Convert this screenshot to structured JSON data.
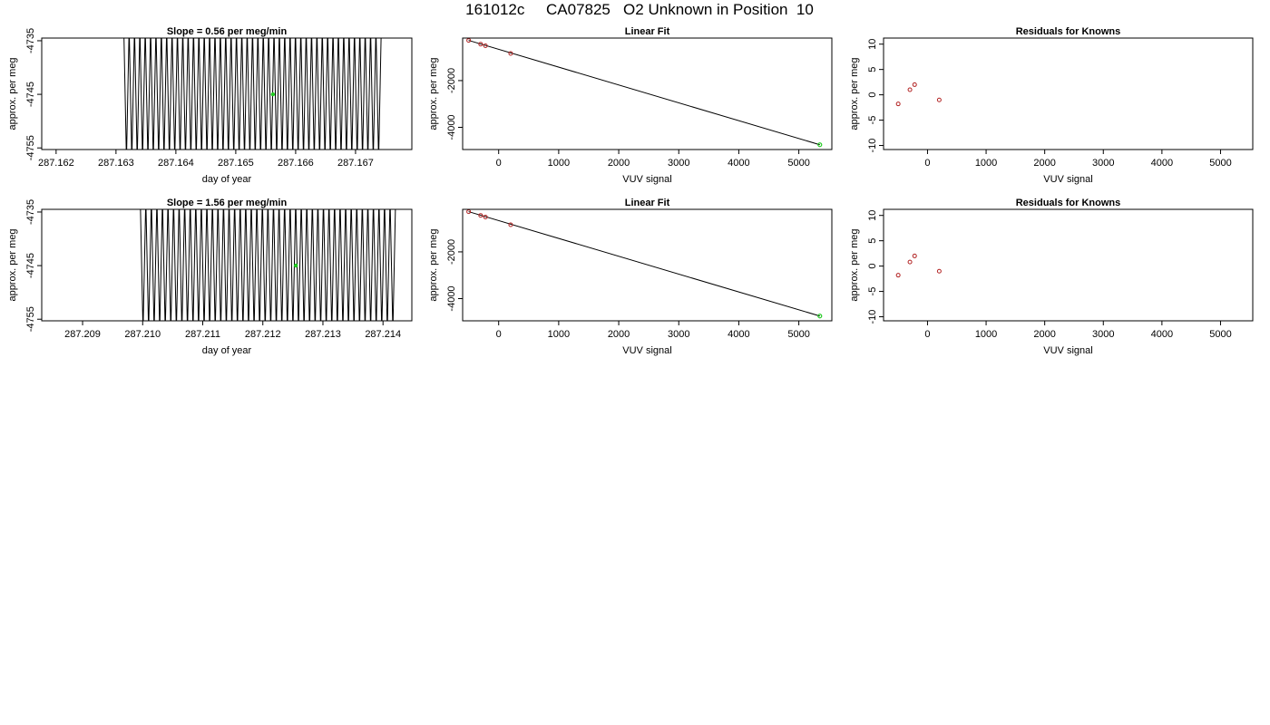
{
  "page_title": "161012c     CA07825   O2 Unknown in Position  10",
  "colors": {
    "line": "#000000",
    "known_point": "#b22222",
    "unknown_point": "#22cc22"
  },
  "chart_data": [
    {
      "type": "line",
      "title": "Slope =  0.56  per meg/min",
      "xlabel": "day of year",
      "ylabel": "approx. per meg",
      "xlim": [
        287.16176,
        287.16794
      ],
      "ylim": [
        -4755.3,
        -4734.5
      ],
      "xticks": [
        "287.162",
        "287.163",
        "287.164",
        "287.165",
        "287.166",
        "287.167"
      ],
      "yticks": [
        "-4735",
        "-4745",
        "-4755"
      ],
      "trace": {
        "x_start": 287.16313,
        "x_end": 287.16743,
        "y_low": -4755.3,
        "y_high": -4734.5,
        "oscillations": 48
      },
      "highlight_point": {
        "x": 287.16562,
        "y": -4745.0
      }
    },
    {
      "type": "scatter",
      "title": "Linear Fit",
      "xlabel": "VUV signal",
      "ylabel": "approx. per meg",
      "xlim": [
        -600,
        5550
      ],
      "ylim": [
        -4950,
        -180
      ],
      "xticks": [
        "0",
        "1000",
        "2000",
        "3000",
        "4000",
        "5000"
      ],
      "yticks": [
        "-2000",
        "-4000"
      ],
      "known_points": [
        {
          "x": -500,
          "y": -280
        },
        {
          "x": -300,
          "y": -440
        },
        {
          "x": -220,
          "y": -510
        },
        {
          "x": 200,
          "y": -840
        }
      ],
      "unknown_point": {
        "x": 5350,
        "y": -4745
      },
      "fit_line": [
        {
          "x": -500,
          "y": -280
        },
        {
          "x": 5350,
          "y": -4745
        }
      ]
    },
    {
      "type": "scatter",
      "title": "Residuals for Knowns",
      "xlabel": "VUV signal",
      "ylabel": "approx. per meg",
      "xlim": [
        -750,
        5550
      ],
      "ylim": [
        -10.8,
        11.2
      ],
      "xticks": [
        "0",
        "1000",
        "2000",
        "3000",
        "4000",
        "5000"
      ],
      "yticks": [
        "10",
        "5",
        "0",
        "-5",
        "-10"
      ],
      "points": [
        {
          "x": -500,
          "y": -1.8
        },
        {
          "x": -300,
          "y": 1.0
        },
        {
          "x": -220,
          "y": 2.0
        },
        {
          "x": 200,
          "y": -1.0
        }
      ]
    },
    {
      "type": "line",
      "title": "Slope =  1.56  per meg/min",
      "xlabel": "day of year",
      "ylabel": "approx. per meg",
      "xlim": [
        287.20832,
        287.21448
      ],
      "ylim": [
        -4755.3,
        -4734.5
      ],
      "xticks": [
        "287.209",
        "287.210",
        "287.211",
        "287.212",
        "287.213",
        "287.214"
      ],
      "yticks": [
        "-4735",
        "-4745",
        "-4755"
      ],
      "trace": {
        "x_start": 287.20996,
        "x_end": 287.21421,
        "y_low": -4755.3,
        "y_high": -4734.5,
        "oscillations": 46
      },
      "highlight_point": {
        "x": 287.21255,
        "y": -4745.0
      }
    },
    {
      "type": "scatter",
      "title": "Linear Fit",
      "xlabel": "VUV signal",
      "ylabel": "approx. per meg",
      "xlim": [
        -600,
        5550
      ],
      "ylim": [
        -4950,
        -180
      ],
      "xticks": [
        "0",
        "1000",
        "2000",
        "3000",
        "4000",
        "5000"
      ],
      "yticks": [
        "-2000",
        "-4000"
      ],
      "known_points": [
        {
          "x": -500,
          "y": -280
        },
        {
          "x": -300,
          "y": -440
        },
        {
          "x": -220,
          "y": -510
        },
        {
          "x": 200,
          "y": -840
        }
      ],
      "unknown_point": {
        "x": 5350,
        "y": -4745
      },
      "fit_line": [
        {
          "x": -500,
          "y": -280
        },
        {
          "x": 5350,
          "y": -4745
        }
      ]
    },
    {
      "type": "scatter",
      "title": "Residuals for Knowns",
      "xlabel": "VUV signal",
      "ylabel": "approx. per meg",
      "xlim": [
        -750,
        5550
      ],
      "ylim": [
        -10.8,
        11.2
      ],
      "xticks": [
        "0",
        "1000",
        "2000",
        "3000",
        "4000",
        "5000"
      ],
      "yticks": [
        "10",
        "5",
        "0",
        "-5",
        "-10"
      ],
      "points": [
        {
          "x": -500,
          "y": -1.8
        },
        {
          "x": -300,
          "y": 0.8
        },
        {
          "x": -220,
          "y": 2.0
        },
        {
          "x": 200,
          "y": -1.0
        }
      ]
    }
  ]
}
